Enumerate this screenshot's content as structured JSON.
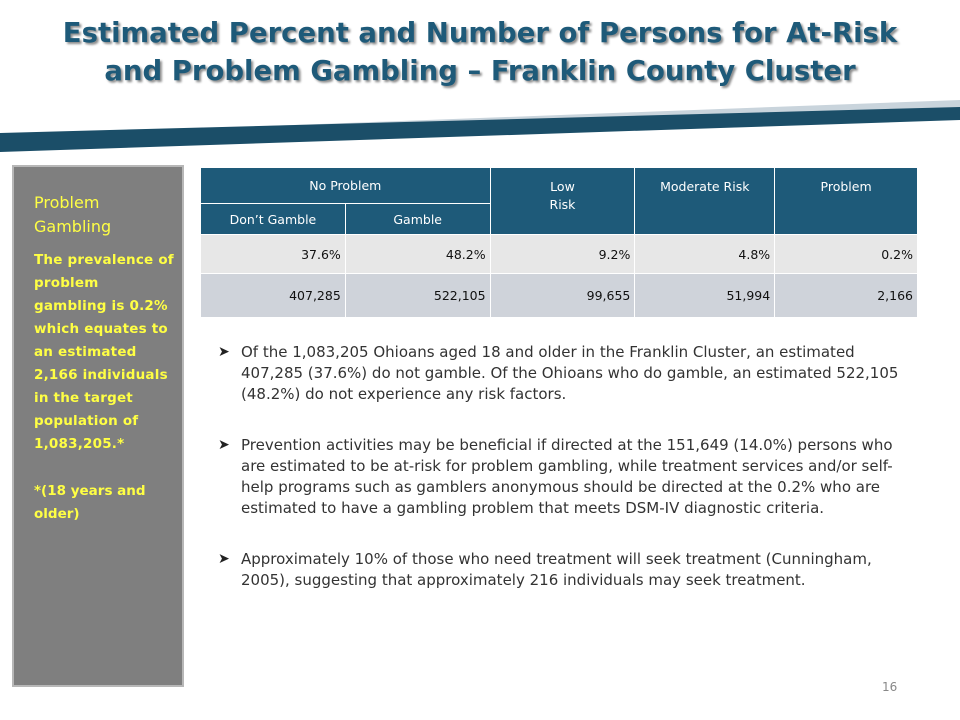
{
  "slide": {
    "title_line1": "Estimated Percent and Number of Persons for At-Risk",
    "title_line2": "and Problem Gambling – Franklin County Cluster",
    "page_number": "16"
  },
  "sidebar": {
    "heading": "Problem Gambling",
    "body": "The prevalence of problem gambling is 0.2% which equates to an estimated 2,166 individuals in the target population of 1,083,205.*",
    "note": "*(18 years and older)"
  },
  "table": {
    "headers": {
      "no_problem": "No Problem",
      "low_risk_line1": "Low",
      "low_risk_line2": "Risk",
      "moderate_risk": "Moderate Risk",
      "problem": "Problem",
      "dont_gamble": "Don’t Gamble",
      "gamble": "Gamble"
    },
    "rows": [
      [
        "37.6%",
        "48.2%",
        "9.2%",
        "4.8%",
        "0.2%"
      ],
      [
        "407,285",
        "522,105",
        "99,655",
        "51,994",
        "2,166"
      ]
    ]
  },
  "bullets": [
    "Of the 1,083,205  Ohioans aged 18 and older in the Franklin Cluster, an estimated 407,285 (37.6%) do not gamble.  Of the Ohioans who do gamble, an estimated 522,105 (48.2%) do not experience any risk factors.",
    "Prevention activities may be beneficial if directed at the 151,649 (14.0%) persons who are estimated to be at-risk for problem gambling, while treatment services and/or self-help programs such as gamblers anonymous should be directed at the 0.2% who are estimated to have a gambling problem that meets DSM-IV diagnostic criteria.",
    "Approximately 10% of those who need treatment will seek treatment (Cunningham, 2005), suggesting that approximately 216 individuals may seek treatment."
  ],
  "colors": {
    "title": "#1e5a79",
    "header_fill": "#1e5a79",
    "sidebar_fill": "#7f7f7f",
    "sidebar_text": "#ffff44",
    "band_dark": "#1b4e68",
    "band_light": "#c9d4dc"
  }
}
